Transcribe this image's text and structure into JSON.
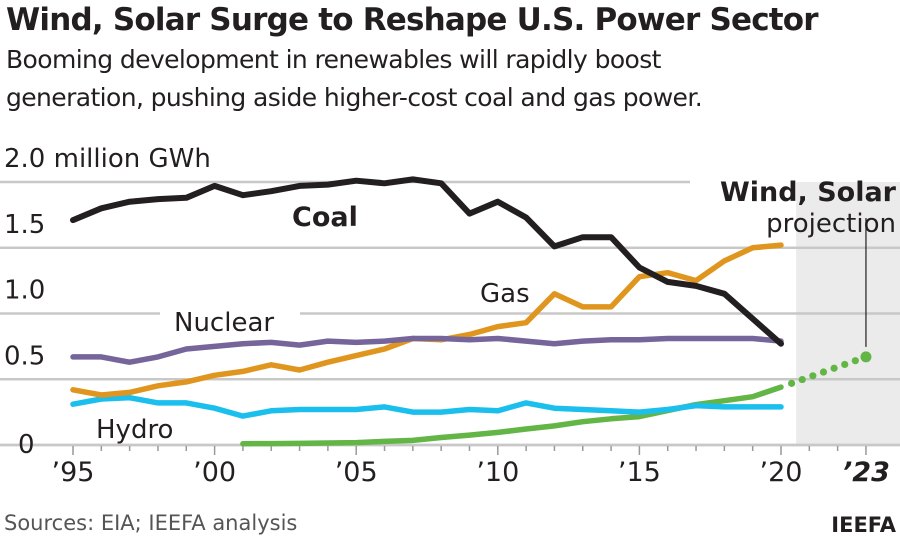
{
  "title": "Wind, Solar Surge to Reshape U.S. Power Sector",
  "subtitle_line1": "Booming development in renewables will rapidly boost",
  "subtitle_line2": "generation, pushing aside higher-cost coal and gas power.",
  "source": "Sources: EIA; IEEFA analysis",
  "credit": "IEEFA",
  "colors": {
    "coal": "#231f20",
    "gas": "#e0961e",
    "nuclear": "#76659b",
    "hydro": "#1bbfee",
    "wind_solar": "#63b645",
    "grid": "#c8c8c8",
    "shade": "#ebebeb"
  },
  "chart_data": {
    "type": "line",
    "title": "Wind, Solar Surge to Reshape U.S. Power Sector",
    "ylabel": "million GWh",
    "ylim": [
      0,
      2.0
    ],
    "xlim": [
      1995,
      2023
    ],
    "yticks": [
      0,
      0.5,
      1.0,
      1.5,
      2.0
    ],
    "ytick_labels": [
      "0",
      "0.5",
      "1.0",
      "1.5",
      "2.0 million GWh"
    ],
    "xticks": [
      1995,
      2000,
      2005,
      2010,
      2015,
      2020,
      2023
    ],
    "xtick_labels": [
      "’95",
      "’00",
      "’05",
      "’10",
      "’15",
      "’20",
      "’23"
    ],
    "grid": true,
    "projection_label_bold": "Wind, Solar",
    "projection_label": "projection",
    "projection_region": [
      2021,
      2023
    ],
    "series": [
      {
        "name": "Coal",
        "key": "coal",
        "x_start": 1995,
        "values": [
          1.71,
          1.8,
          1.85,
          1.87,
          1.88,
          1.97,
          1.9,
          1.93,
          1.97,
          1.98,
          2.01,
          1.99,
          2.02,
          1.99,
          1.76,
          1.85,
          1.73,
          1.51,
          1.58,
          1.58,
          1.35,
          1.24,
          1.21,
          1.15,
          0.96,
          0.77
        ]
      },
      {
        "name": "Gas",
        "key": "gas",
        "x_start": 1995,
        "values": [
          0.42,
          0.38,
          0.4,
          0.45,
          0.48,
          0.53,
          0.56,
          0.61,
          0.57,
          0.63,
          0.68,
          0.73,
          0.81,
          0.8,
          0.84,
          0.9,
          0.93,
          1.15,
          1.05,
          1.05,
          1.28,
          1.31,
          1.25,
          1.4,
          1.5,
          1.52
        ]
      },
      {
        "name": "Nuclear",
        "key": "nuclear",
        "x_start": 1995,
        "values": [
          0.67,
          0.67,
          0.63,
          0.67,
          0.73,
          0.75,
          0.77,
          0.78,
          0.76,
          0.79,
          0.78,
          0.79,
          0.81,
          0.81,
          0.8,
          0.81,
          0.79,
          0.77,
          0.79,
          0.8,
          0.8,
          0.81,
          0.81,
          0.81,
          0.81,
          0.79
        ]
      },
      {
        "name": "Hydro",
        "key": "hydro",
        "x_start": 1995,
        "values": [
          0.31,
          0.35,
          0.36,
          0.32,
          0.32,
          0.28,
          0.22,
          0.26,
          0.27,
          0.27,
          0.27,
          0.29,
          0.25,
          0.25,
          0.27,
          0.26,
          0.32,
          0.28,
          0.27,
          0.26,
          0.25,
          0.27,
          0.3,
          0.29,
          0.29,
          0.29
        ]
      },
      {
        "name": "Wind, Solar",
        "key": "wind_solar",
        "x_start": 2001,
        "values": [
          0.01,
          0.011,
          0.012,
          0.015,
          0.018,
          0.027,
          0.035,
          0.057,
          0.075,
          0.096,
          0.122,
          0.145,
          0.177,
          0.199,
          0.216,
          0.262,
          0.307,
          0.337,
          0.367,
          0.44
        ],
        "projection": {
          "x": [
            2020,
            2023
          ],
          "values": [
            0.44,
            0.67
          ]
        }
      }
    ],
    "series_labels": {
      "coal": "Coal",
      "gas": "Gas",
      "nuclear": "Nuclear",
      "hydro": "Hydro"
    }
  }
}
